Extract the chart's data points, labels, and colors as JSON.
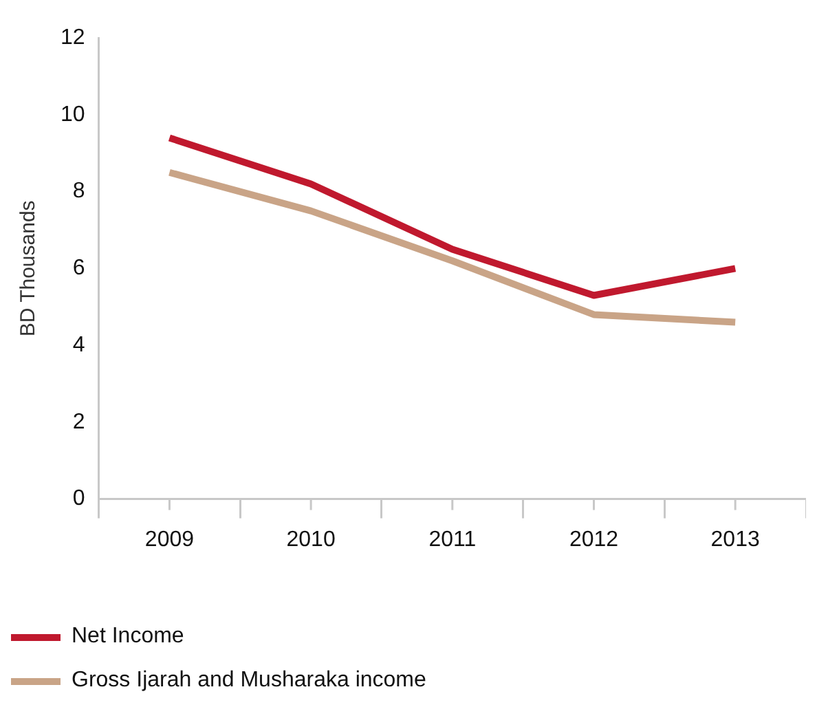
{
  "chart_data": {
    "type": "line",
    "ylabel": "BD Thousands",
    "categories": [
      "2009",
      "2010",
      "2011",
      "2012",
      "2013"
    ],
    "series": [
      {
        "name": "Net Income",
        "color": "#c0192e",
        "values": [
          9.4,
          8.2,
          6.5,
          5.3,
          6.0
        ]
      },
      {
        "name": "Gross Ijarah and Musharaka income",
        "color": "#c9a487",
        "values": [
          8.5,
          7.5,
          6.2,
          4.8,
          4.6
        ]
      }
    ],
    "ylim": [
      0,
      12
    ],
    "yticks": [
      0,
      2,
      4,
      6,
      8,
      10,
      12
    ],
    "grid": false,
    "legend": "bottom left",
    "marker": "none",
    "line_style": "solid"
  }
}
